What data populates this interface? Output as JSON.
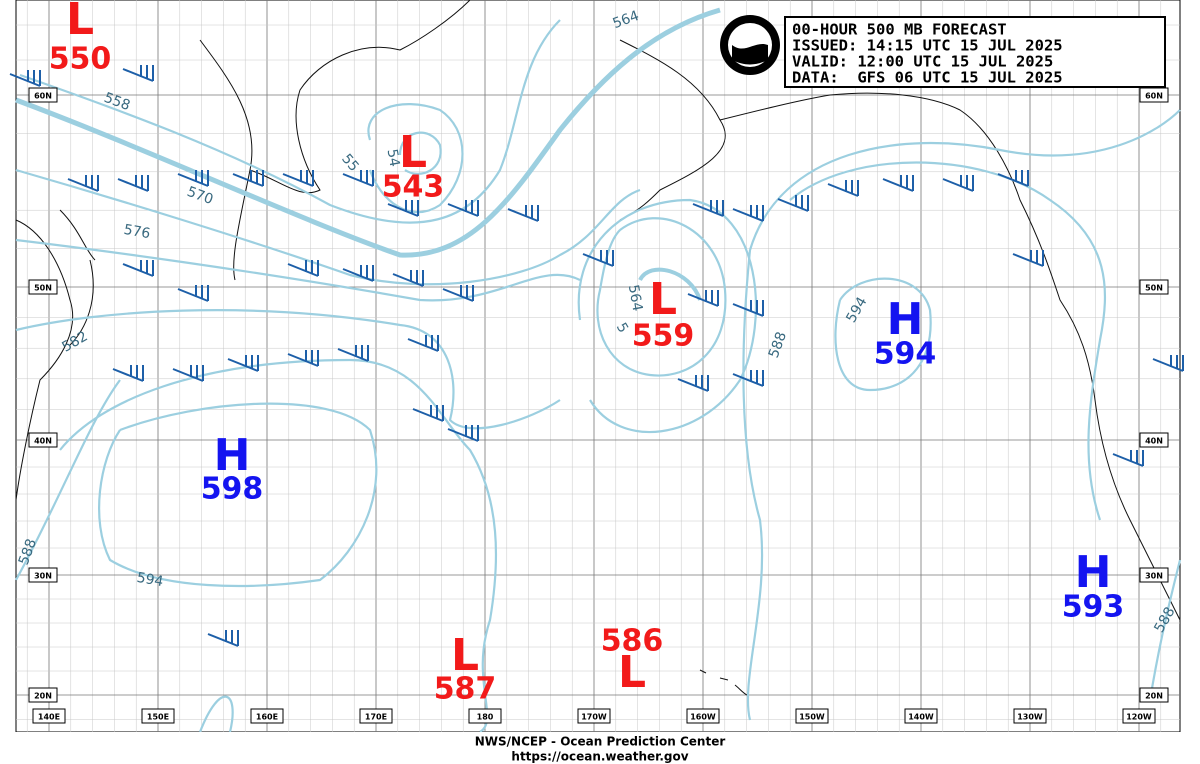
{
  "header": {
    "lines": [
      "00-HOUR 500 MB FORECAST",
      "ISSUED: 14:15 UTC 15 JUL 2025",
      "VALID: 12:00 UTC 15 JUL 2025",
      "DATA:  GFS 06 UTC 15 JUL 2025"
    ]
  },
  "centers": [
    {
      "type": "L",
      "value": 550
    },
    {
      "type": "L",
      "value": 543
    },
    {
      "type": "L",
      "value": 559
    },
    {
      "type": "H",
      "value": 594
    },
    {
      "type": "H",
      "value": 598
    },
    {
      "type": "H",
      "value": 593
    },
    {
      "type": "L",
      "value": 587
    },
    {
      "type": "L",
      "value": 586
    }
  ],
  "lat_labels": [
    "60N",
    "50N",
    "40N",
    "30N",
    "20N"
  ],
  "lon_labels": [
    "140E",
    "150E",
    "160E",
    "170E",
    "180",
    "170W",
    "160W",
    "150W",
    "140W",
    "130W",
    "120W"
  ],
  "contour_labels": [
    "558",
    "564",
    "54",
    "55",
    "570",
    "576",
    "582",
    "564",
    "5",
    "588",
    "594",
    "594",
    "588",
    "588"
  ],
  "footer": [
    "NWS/NCEP - Ocean Prediction Center",
    "https://ocean.weather.gov"
  ]
}
